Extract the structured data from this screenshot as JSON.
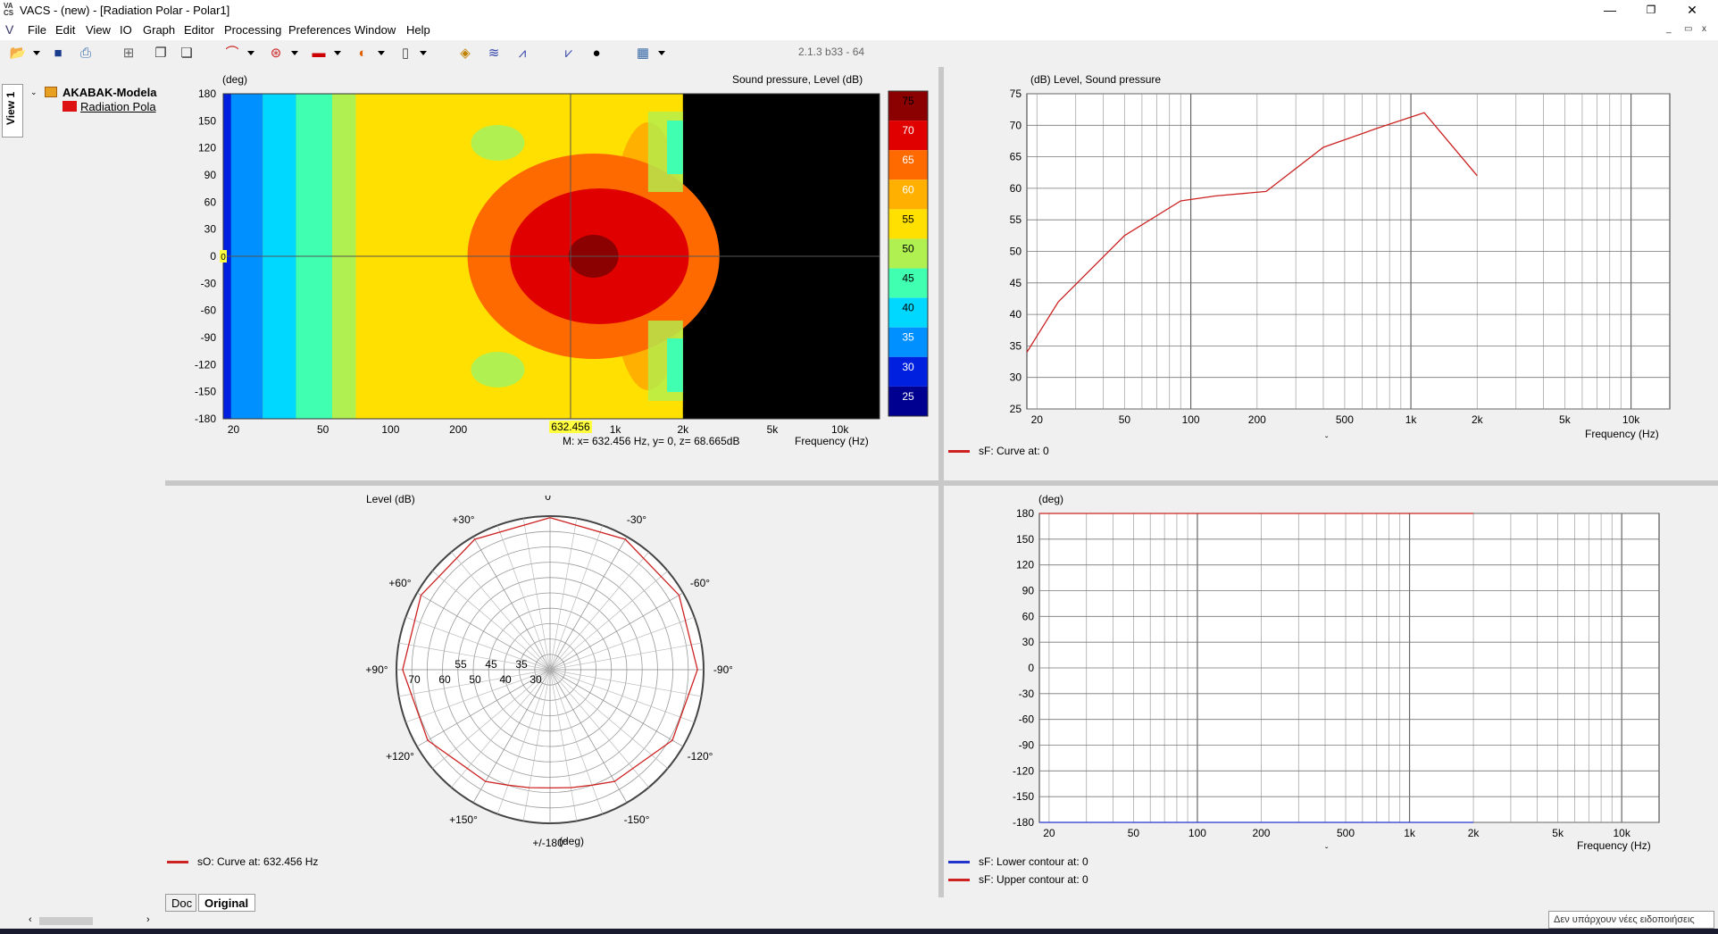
{
  "window": {
    "title": "VACS - (new) - [Radiation Polar - Polar1]",
    "icon": "vacs-app-icon",
    "min": "—",
    "restore": "❐",
    "close": "✕"
  },
  "menu": [
    "File",
    "Edit",
    "View",
    "IO",
    "Graph",
    "Editor",
    "Processing",
    "Preferences",
    "Window",
    "Help"
  ],
  "version": "2.1.3 b33 - 64",
  "sidebar": {
    "tab": "View 1",
    "root": "AKABAK-Modela",
    "child": "Radiation Pola"
  },
  "heatmap": {
    "ylabel": "(deg)",
    "title": "Sound pressure, Level  (dB)",
    "yticks": [
      "180",
      "150",
      "120",
      "90",
      "60",
      "30",
      "0",
      "-30",
      "-60",
      "-90",
      "-120",
      "-150",
      "-180"
    ],
    "xticks": [
      "20",
      "50",
      "100",
      "200",
      "1k",
      "2k",
      "5k",
      "10k"
    ],
    "xlabel": "Frequency  (Hz)",
    "cursor_x": "632.456",
    "cursor_y": "0",
    "readout": "M:  x= 632.456 Hz,  y= 0, z= 68.665dB",
    "colorbar": [
      "75",
      "70",
      "65",
      "60",
      "55",
      "50",
      "45",
      "40",
      "35",
      "30",
      "25"
    ],
    "colors": [
      "#8b0000",
      "#e00000",
      "#ff6a00",
      "#ffb000",
      "#ffe000",
      "#b0f050",
      "#40ffb0",
      "#00d8ff",
      "#0090ff",
      "#0020e0",
      "#000090"
    ]
  },
  "chart_data": [
    {
      "type": "line",
      "title": "",
      "ylabel": "(dB)  Level, Sound pressure",
      "xlabel": "Frequency  (Hz)",
      "xscale": "log",
      "xlim": [
        18,
        15000
      ],
      "ylim": [
        25,
        75
      ],
      "yticks": [
        "75",
        "70",
        "65",
        "60",
        "55",
        "50",
        "45",
        "40",
        "35",
        "30",
        "25"
      ],
      "xticks": [
        "20",
        "50",
        "100",
        "200",
        "500",
        "1k",
        "2k",
        "5k",
        "10k"
      ],
      "series": [
        {
          "name": "sF: Curve at: 0",
          "color": "#cc2222",
          "x": [
            18,
            25,
            50,
            90,
            130,
            220,
            400,
            700,
            1150,
            2000
          ],
          "y": [
            34,
            42,
            52.5,
            58,
            58.8,
            59.5,
            66.5,
            69.5,
            72,
            62
          ]
        }
      ]
    },
    {
      "type": "polar",
      "ylabel": "Level  (dB)",
      "unit": "(deg)",
      "angle_labels": [
        "0°",
        "-30°",
        "-60°",
        "-90°",
        "-120°",
        "-150°",
        "+/-180°",
        "+150°",
        "+120°",
        "+90°",
        "+60°",
        "+30°"
      ],
      "radial_labels_left": [
        "70",
        "60",
        "50",
        "40",
        "30"
      ],
      "radial_labels_upper": [
        "55",
        "45",
        "35"
      ],
      "series": [
        {
          "name": "sO: Curve at: 632.456 Hz",
          "color": "#cc2222",
          "angles": [
            0,
            30,
            60,
            90,
            120,
            150,
            160,
            170,
            180,
            190,
            200,
            210,
            240,
            270,
            300,
            330
          ],
          "levels": [
            69.5,
            69,
            68.5,
            68,
            66,
            62,
            60,
            59,
            58.5,
            59,
            60,
            62,
            66,
            68,
            68.5,
            69
          ]
        }
      ]
    },
    {
      "type": "line",
      "title": "",
      "ylabel": "(deg)",
      "xlabel": "Frequency  (Hz)",
      "xscale": "log",
      "xlim": [
        18,
        15000
      ],
      "ylim": [
        -180,
        180
      ],
      "yticks": [
        "180",
        "150",
        "120",
        "90",
        "60",
        "30",
        "0",
        "-30",
        "-60",
        "-90",
        "-120",
        "-150",
        "-180"
      ],
      "xticks": [
        "20",
        "50",
        "100",
        "200",
        "500",
        "1k",
        "2k",
        "5k",
        "10k"
      ],
      "series": [
        {
          "name": "sF: Lower contour at: 0",
          "color": "#2233cc",
          "x": [
            18,
            2000
          ],
          "y": [
            -180,
            -180
          ]
        },
        {
          "name": "sF: Upper contour at: 0",
          "color": "#cc2222",
          "x": [
            18,
            2000
          ],
          "y": [
            180,
            180
          ]
        }
      ]
    }
  ],
  "tabs": {
    "doc": "Doc",
    "original": "Original"
  },
  "notification": "Δεν υπάρχουν νέες ειδοποιήσεις"
}
